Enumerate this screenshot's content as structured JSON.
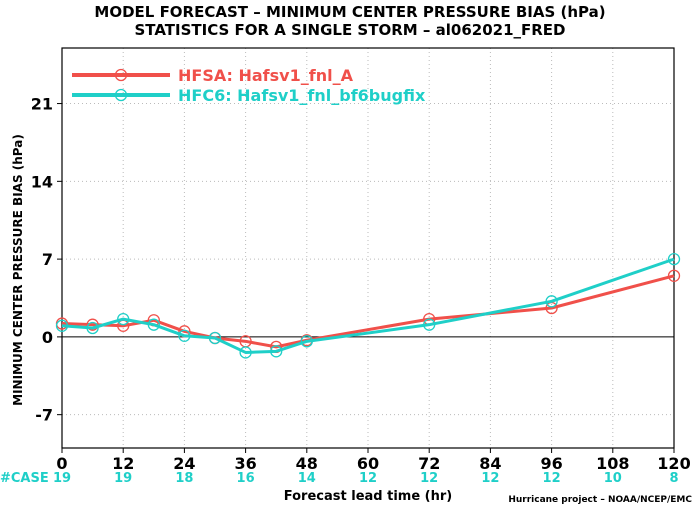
{
  "chart_data": {
    "type": "line",
    "title_line1": "MODEL FORECAST – MINIMUM CENTER PRESSURE BIAS (hPa)",
    "title_line2": "STATISTICS FOR A SINGLE STORM – al062021_FRED",
    "xlabel": "Forecast lead time (hr)",
    "ylabel": "MINIMUM CENTER PRESSURE BIAS (hPa)",
    "credit": "Hurricane project – NOAA/NCEP/EMC",
    "xlim": [
      0,
      120
    ],
    "ylim": [
      -10,
      26
    ],
    "xticks": [
      0,
      12,
      24,
      36,
      48,
      60,
      72,
      84,
      96,
      108,
      120
    ],
    "yticks": [
      -7,
      0,
      7,
      14,
      21
    ],
    "grid": true,
    "zero_line": true,
    "legend_position": "top-left",
    "case_label": "#CASE",
    "case_counts": [
      "19",
      "19",
      "18",
      "16",
      "14",
      "12",
      "12",
      "12",
      "12",
      "10",
      "8"
    ],
    "series": [
      {
        "name": "HFSA: Hafsv1_fnl_A",
        "color": "#f0504a",
        "x": [
          0,
          6,
          12,
          18,
          24,
          30,
          36,
          42,
          48,
          72,
          96,
          120
        ],
        "y": [
          1.2,
          1.1,
          1.0,
          1.5,
          0.5,
          -0.1,
          -0.4,
          -0.9,
          -0.3,
          1.6,
          2.6,
          5.5
        ]
      },
      {
        "name": "HFC6: Hafsv1_fnl_bf6bugfix",
        "color": "#1fcfc8",
        "x": [
          0,
          6,
          12,
          18,
          24,
          30,
          36,
          42,
          48,
          72,
          96,
          120
        ],
        "y": [
          1.0,
          0.8,
          1.6,
          1.1,
          0.1,
          -0.1,
          -1.4,
          -1.3,
          -0.4,
          1.1,
          3.2,
          7.0
        ]
      }
    ]
  }
}
